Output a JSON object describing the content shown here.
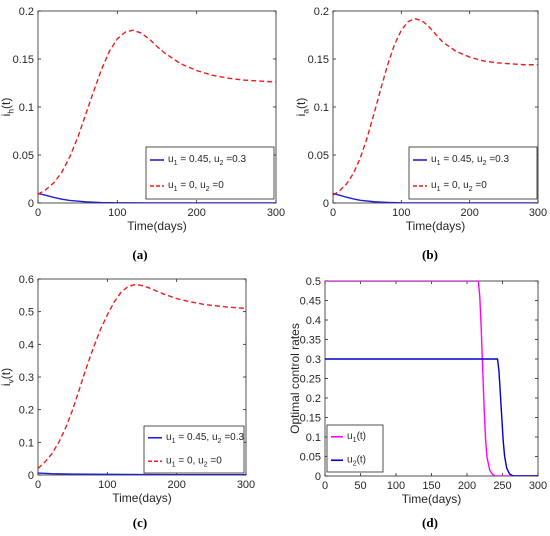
{
  "colors": {
    "blue": "#1f1fd6",
    "red": "#ee1c1c",
    "magenta": "#ff00ff",
    "navy": "#0000c8"
  },
  "chart_data": [
    {
      "panel": "(a)",
      "type": "line",
      "ylabel_main": "i",
      "ylabel_sub": "h",
      "ylabel_suffix": "(t)",
      "xlabel": "Time(days)",
      "xlim": [
        0,
        300
      ],
      "ylim": [
        0,
        0.2
      ],
      "xticks": [
        0,
        100,
        200,
        300
      ],
      "xtick_labels": [
        "0",
        "100",
        "200",
        "300"
      ],
      "yticks": [
        0,
        0.05,
        0.1,
        0.15,
        0.2
      ],
      "ytick_labels": [
        "0",
        "0.05",
        "0.1",
        "0.15",
        "0.2"
      ],
      "legend_position": "lower-right",
      "series": [
        {
          "name": "u1 = 0.45, u2 =0.3",
          "legend": [
            "u",
            "1",
            " = 0.45, u",
            "2",
            " =0.3"
          ],
          "color": "#1f1fd6",
          "style": "solid",
          "x": [
            0,
            10,
            20,
            30,
            40,
            60,
            80,
            100,
            150,
            200,
            300
          ],
          "y": [
            0.01,
            0.008,
            0.0058,
            0.004,
            0.0027,
            0.0012,
            0.0005,
            0.0002,
            0.0001,
            0,
            0
          ]
        },
        {
          "name": "u1 = 0, u2 =0",
          "legend": [
            "u",
            "1",
            " = 0, u",
            "2",
            " =0"
          ],
          "color": "#ee1c1c",
          "style": "dashed",
          "x": [
            0,
            10,
            20,
            30,
            40,
            50,
            60,
            70,
            80,
            90,
            100,
            110,
            120,
            130,
            140,
            150,
            160,
            180,
            200,
            220,
            240,
            260,
            280,
            300
          ],
          "y": [
            0.009,
            0.014,
            0.021,
            0.032,
            0.048,
            0.068,
            0.092,
            0.116,
            0.139,
            0.158,
            0.171,
            0.178,
            0.18,
            0.177,
            0.171,
            0.163,
            0.156,
            0.145,
            0.138,
            0.133,
            0.13,
            0.128,
            0.127,
            0.126
          ]
        }
      ]
    },
    {
      "panel": "(b)",
      "type": "line",
      "ylabel_main": "i",
      "ylabel_sub": "a",
      "ylabel_suffix": "(t)",
      "xlabel": "Time(days)",
      "xlim": [
        0,
        300
      ],
      "ylim": [
        0,
        0.2
      ],
      "xticks": [
        0,
        100,
        200,
        300
      ],
      "xtick_labels": [
        "0",
        "100",
        "200",
        "300"
      ],
      "yticks": [
        0,
        0.05,
        0.1,
        0.15,
        0.2
      ],
      "ytick_labels": [
        "0",
        "0.05",
        "0.1",
        "0.15",
        "0.2"
      ],
      "legend_position": "lower-right",
      "series": [
        {
          "name": "u1 = 0.45, u2 =0.3",
          "legend": [
            "u",
            "1",
            " = 0.45, u",
            "2",
            " =0.3"
          ],
          "color": "#1f1fd6",
          "style": "solid",
          "x": [
            0,
            10,
            20,
            30,
            40,
            60,
            80,
            100,
            150,
            200,
            300
          ],
          "y": [
            0.01,
            0.008,
            0.006,
            0.0042,
            0.0028,
            0.0013,
            0.0006,
            0.0002,
            0.0001,
            0,
            0
          ]
        },
        {
          "name": "u1 = 0, u2 =0",
          "legend": [
            "u",
            "1",
            " = 0, u",
            "2",
            " =0"
          ],
          "color": "#ee1c1c",
          "style": "dashed",
          "x": [
            0,
            10,
            20,
            30,
            40,
            50,
            60,
            70,
            80,
            90,
            100,
            110,
            120,
            130,
            140,
            150,
            160,
            180,
            200,
            220,
            240,
            260,
            280,
            300
          ],
          "y": [
            0.008,
            0.013,
            0.02,
            0.031,
            0.047,
            0.068,
            0.093,
            0.119,
            0.144,
            0.165,
            0.18,
            0.189,
            0.192,
            0.19,
            0.184,
            0.176,
            0.168,
            0.158,
            0.152,
            0.148,
            0.146,
            0.145,
            0.144,
            0.144
          ]
        }
      ]
    },
    {
      "panel": "(c)",
      "type": "line",
      "ylabel_main": "i",
      "ylabel_sub": "v",
      "ylabel_suffix": "(t)",
      "xlabel": "Time(days)",
      "xlim": [
        0,
        300
      ],
      "ylim": [
        0,
        0.6
      ],
      "xticks": [
        0,
        100,
        200,
        300
      ],
      "xtick_labels": [
        "0",
        "100",
        "200",
        "300"
      ],
      "yticks": [
        0,
        0.1,
        0.2,
        0.3,
        0.4,
        0.5,
        0.6
      ],
      "ytick_labels": [
        "0",
        "0.1",
        "0.2",
        "0.3",
        "0.4",
        "0.5",
        "0.6"
      ],
      "legend_position": "lower-right",
      "series": [
        {
          "name": "u1 = 0.45, u2 =0.3",
          "legend": [
            "u",
            "1",
            " = 0.45, u",
            "2",
            " =0.3"
          ],
          "color": "#1f1fd6",
          "style": "solid",
          "x": [
            0,
            20,
            50,
            100,
            200,
            300
          ],
          "y": [
            0.006,
            0.004,
            0.003,
            0.002,
            0.001,
            0.001
          ]
        },
        {
          "name": "u1 = 0, u2 =0",
          "legend": [
            "u",
            "1",
            " = 0, u",
            "2",
            " =0"
          ],
          "color": "#ee1c1c",
          "style": "dashed",
          "x": [
            0,
            10,
            20,
            30,
            40,
            50,
            60,
            70,
            80,
            90,
            100,
            110,
            120,
            130,
            140,
            150,
            160,
            180,
            200,
            220,
            240,
            260,
            280,
            300
          ],
          "y": [
            0.02,
            0.04,
            0.065,
            0.1,
            0.145,
            0.2,
            0.265,
            0.33,
            0.39,
            0.445,
            0.49,
            0.53,
            0.56,
            0.577,
            0.583,
            0.58,
            0.573,
            0.555,
            0.54,
            0.53,
            0.522,
            0.517,
            0.513,
            0.51
          ]
        }
      ]
    },
    {
      "panel": "(d)",
      "type": "line",
      "ylabel": "Optimal control rates",
      "xlabel": "Time(days)",
      "xlim": [
        0,
        300
      ],
      "ylim": [
        0,
        0.5
      ],
      "xticks": [
        0,
        50,
        100,
        150,
        200,
        250,
        300
      ],
      "xtick_labels": [
        "0",
        "50",
        "100",
        "150",
        "200",
        "250",
        "300"
      ],
      "yticks": [
        0,
        0.05,
        0.1,
        0.15,
        0.2,
        0.25,
        0.3,
        0.35,
        0.4,
        0.45,
        0.5
      ],
      "ytick_labels": [
        "0",
        "0.05",
        "0.1",
        "0.15",
        "0.2",
        "0.25",
        "0.3",
        "0.35",
        "0.4",
        "0.45",
        "0.5"
      ],
      "legend_position": "lower-left",
      "series": [
        {
          "name": "u1(t)",
          "legend": [
            "u",
            "1",
            "(t)"
          ],
          "color": "#ff00ff",
          "style": "solid",
          "x": [
            0,
            216,
            218,
            220,
            222,
            224,
            226,
            228,
            232,
            236,
            240,
            300
          ],
          "y": [
            0.5,
            0.5,
            0.46,
            0.38,
            0.28,
            0.18,
            0.1,
            0.05,
            0.015,
            0.004,
            0,
            0
          ]
        },
        {
          "name": "u2(t)",
          "legend": [
            "u",
            "2",
            "(t)"
          ],
          "color": "#0000c8",
          "style": "solid",
          "x": [
            0,
            243,
            245,
            247,
            249,
            251,
            253,
            256,
            260,
            265,
            300
          ],
          "y": [
            0.3,
            0.3,
            0.27,
            0.21,
            0.15,
            0.09,
            0.05,
            0.02,
            0.005,
            0,
            0
          ]
        }
      ]
    }
  ]
}
